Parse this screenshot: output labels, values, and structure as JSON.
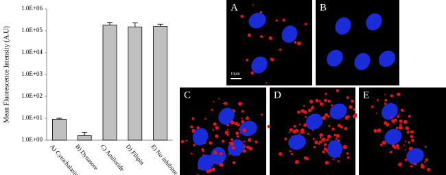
{
  "chart_data": {
    "type": "bar",
    "y_label": "Mean Fluorescence Intensity (A.U)",
    "categories": [
      "A) Cytochalasin D",
      "B) Dynasore",
      "C) Amiloride",
      "D) Filipin",
      "E) No inhibitor"
    ],
    "values": [
      9,
      1.6,
      180000,
      150000,
      160000
    ],
    "errors": [
      1,
      0.7,
      60000,
      80000,
      40000
    ],
    "color": "#c0c0c0",
    "log_scale": true,
    "ylim": [
      1,
      1000000
    ],
    "yticks": [
      {
        "value": 1,
        "label": "1.0E+00"
      },
      {
        "value": 10,
        "label": "1.0E+01"
      },
      {
        "value": 100,
        "label": "1.0E+02"
      },
      {
        "value": 1000,
        "label": "1.0E+03"
      },
      {
        "value": 10000,
        "label": "1.0E+04"
      },
      {
        "value": 100000,
        "label": "1.0E+05"
      },
      {
        "value": 1000000,
        "label": "1.0E+06"
      }
    ],
    "grid": false
  },
  "panels": [
    {
      "label": "A"
    },
    {
      "label": "B"
    },
    {
      "label": "C"
    },
    {
      "label": "D"
    },
    {
      "label": "E"
    }
  ],
  "scale_bar": "10μm"
}
